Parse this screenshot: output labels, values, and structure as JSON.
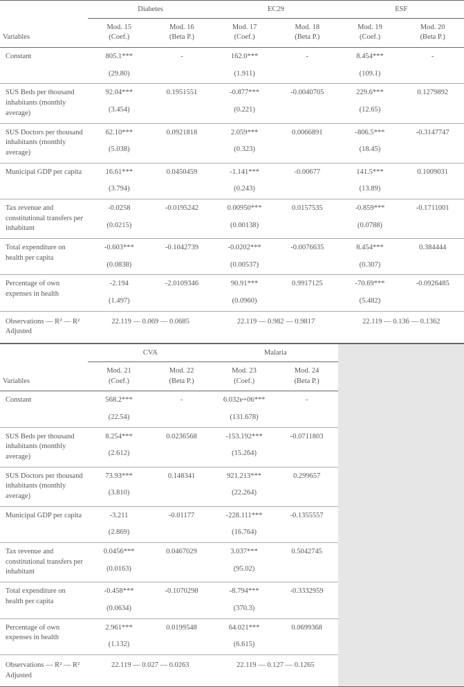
{
  "labels": {
    "variables": "Variables",
    "rows": [
      "Constant",
      "SUS Beds per thousand inhabitants (monthly average)",
      "SUS Doctors per thousand inhabitants (monthly average)",
      "Municipal GDP per capita",
      "Tax revenue and constitutional transfers per inhabitant",
      "Total expenditure on health per capita",
      "Percentage of own expenses in health"
    ],
    "obs": "Observations — R² — R² Adjusted"
  },
  "top": {
    "groups": [
      "Diabetes",
      "EC29",
      "ESF"
    ],
    "cols": [
      {
        "l1": "Mod. 15",
        "l2": "(Coef.)"
      },
      {
        "l1": "Mod. 16",
        "l2": "(Beta P.)"
      },
      {
        "l1": "Mod. 17",
        "l2": "(Coef.)"
      },
      {
        "l1": "Mod. 18",
        "l2": "(Beta P.)"
      },
      {
        "l1": "Mod. 19",
        "l2": "(Coef.)"
      },
      {
        "l1": "Mod. 20",
        "l2": "(Beta P.)"
      }
    ],
    "rows": [
      [
        {
          "c": "805.1***",
          "s": "(29.80)"
        },
        {
          "c": "-",
          "s": ""
        },
        {
          "c": "162.0***",
          "s": "(1.911)"
        },
        {
          "c": "-",
          "s": ""
        },
        {
          "c": "8.454***",
          "s": "(109.1)"
        },
        {
          "c": "-",
          "s": ""
        }
      ],
      [
        {
          "c": "92.04***",
          "s": "(3.454)"
        },
        {
          "c": "0.1951551",
          "s": ""
        },
        {
          "c": "-0.877***",
          "s": "(0.221)"
        },
        {
          "c": "-0.0040705",
          "s": ""
        },
        {
          "c": "229.6***",
          "s": "(12.65)"
        },
        {
          "c": "0.1279892",
          "s": ""
        }
      ],
      [
        {
          "c": "62.10***",
          "s": "(5.038)"
        },
        {
          "c": "0.0921818",
          "s": ""
        },
        {
          "c": "2.059***",
          "s": "(0.323)"
        },
        {
          "c": "0.0066891",
          "s": ""
        },
        {
          "c": "-806.5***",
          "s": "(18.45)"
        },
        {
          "c": "-0.3147747",
          "s": ""
        }
      ],
      [
        {
          "c": "16.61***",
          "s": "(3.794)"
        },
        {
          "c": "0.0450459",
          "s": ""
        },
        {
          "c": "-1.141***",
          "s": "(0.243)"
        },
        {
          "c": "-0.00677",
          "s": ""
        },
        {
          "c": "141.5***",
          "s": "(13.89)"
        },
        {
          "c": "0.1009031",
          "s": ""
        }
      ],
      [
        {
          "c": "-0.0258",
          "s": "(0.0215)"
        },
        {
          "c": "-0.0195242",
          "s": ""
        },
        {
          "c": "0.00950***",
          "s": "(0.00138)"
        },
        {
          "c": "0.0157535",
          "s": ""
        },
        {
          "c": "-0.859***",
          "s": "(0.0788)"
        },
        {
          "c": "-0.1711001",
          "s": ""
        }
      ],
      [
        {
          "c": "-0.603***",
          "s": "(0.0838)"
        },
        {
          "c": "-0.1042739",
          "s": ""
        },
        {
          "c": "-0.0202***",
          "s": "(0.00537)"
        },
        {
          "c": "-0.0076635",
          "s": ""
        },
        {
          "c": "8.454***",
          "s": "(0.307)"
        },
        {
          "c": "0.384444",
          "s": ""
        }
      ],
      [
        {
          "c": "-2.194",
          "s": "(1.497)"
        },
        {
          "c": "-2.0109346",
          "s": ""
        },
        {
          "c": "90.91***",
          "s": "(0.0960)"
        },
        {
          "c": "0.9917125",
          "s": ""
        },
        {
          "c": "-70.69***",
          "s": "(5.482)"
        },
        {
          "c": "-0.0926485",
          "s": ""
        }
      ]
    ],
    "obs": [
      "22.119 — 0.069 — 0.0685",
      "22.119 — 0.982 — 0.9817",
      "22.119 — 0.136 — 0.1362"
    ]
  },
  "bottom": {
    "groups": [
      "CVA",
      "Malaria"
    ],
    "cols": [
      {
        "l1": "Mod. 21",
        "l2": "(Coef.)"
      },
      {
        "l1": "Mod. 22",
        "l2": "(Beta P.)"
      },
      {
        "l1": "Mod. 23",
        "l2": "(Coef.)"
      },
      {
        "l1": "Mod. 24",
        "l2": "(Beta P.)"
      }
    ],
    "rows": [
      [
        {
          "c": "568.2***",
          "s": "(22.54)"
        },
        {
          "c": "-",
          "s": ""
        },
        {
          "c": "6.032e+06***",
          "s": "(131.678)"
        },
        {
          "c": "-",
          "s": ""
        }
      ],
      [
        {
          "c": "8.254***",
          "s": "(2.612)"
        },
        {
          "c": "0.0236568",
          "s": ""
        },
        {
          "c": "-153.192***",
          "s": "(15.264)"
        },
        {
          "c": "-0.0711803",
          "s": ""
        }
      ],
      [
        {
          "c": "73.93***",
          "s": "(3.810)"
        },
        {
          "c": "0.148341",
          "s": ""
        },
        {
          "c": "921.213***",
          "s": "(22.264)"
        },
        {
          "c": "0.299657",
          "s": ""
        }
      ],
      [
        {
          "c": "-3.211",
          "s": "(2.869)"
        },
        {
          "c": "-0.01177",
          "s": ""
        },
        {
          "c": "-228.111***",
          "s": "(16.764)"
        },
        {
          "c": "-0.1355557",
          "s": ""
        }
      ],
      [
        {
          "c": "0.0456***",
          "s": "(0.0163)"
        },
        {
          "c": "0.0467029",
          "s": ""
        },
        {
          "c": "3.037***",
          "s": "(95.02)"
        },
        {
          "c": "0.5042745",
          "s": ""
        }
      ],
      [
        {
          "c": "-0.458***",
          "s": "(0.0634)"
        },
        {
          "c": "-0.1070298",
          "s": ""
        },
        {
          "c": "-8.794***",
          "s": "(370.3)"
        },
        {
          "c": "-0.3332959",
          "s": ""
        }
      ],
      [
        {
          "c": "2.961***",
          "s": "(1.132)"
        },
        {
          "c": "0.0199548",
          "s": ""
        },
        {
          "c": "64.021***",
          "s": "(6.615)"
        },
        {
          "c": "0.0699368",
          "s": ""
        }
      ]
    ],
    "obs": [
      "22.119 — 0.027 — 0.0263",
      "22.119 — 0.127 — 0.1265"
    ]
  },
  "style": {
    "col_widths_top": [
      "126px",
      "90px",
      "90px",
      "90px",
      "90px",
      "90px",
      "90px"
    ],
    "col_widths_bottom": [
      "126px",
      "90px",
      "90px",
      "90px",
      "90px",
      "181px"
    ],
    "border_color": "#666",
    "row_border_color": "#aaa",
    "filler_bg": "#e6e6e6",
    "font_size": 10.5,
    "text_color": "#555"
  }
}
